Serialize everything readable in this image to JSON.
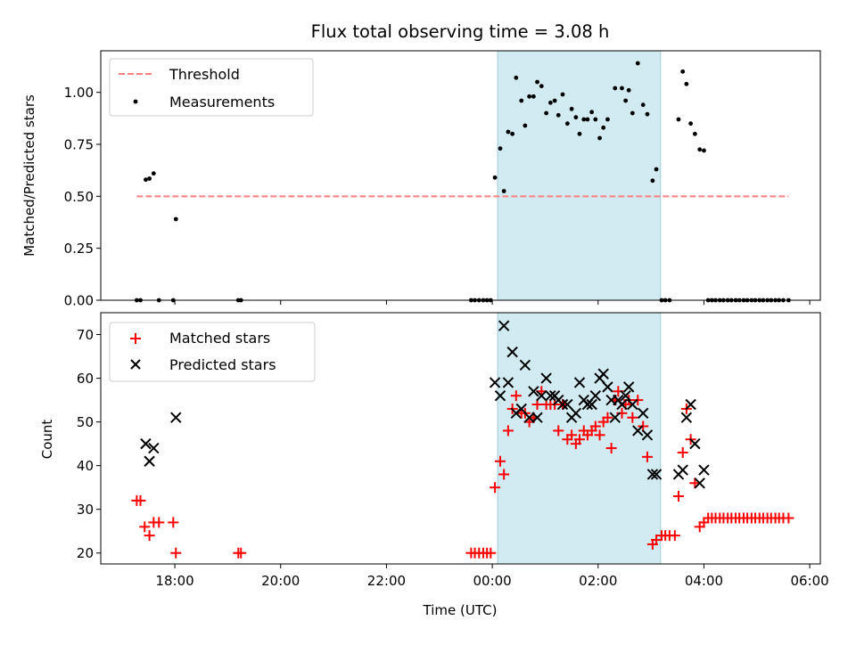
{
  "title": "Flux total observing time = 3.08 h",
  "colors": {
    "threshold": "#ff7f7f",
    "measurement": "#000000",
    "matched": "#ff0000",
    "predicted": "#000000",
    "highlight": "#add8e6"
  },
  "chart_data": [
    {
      "type": "scatter",
      "panel": "top",
      "xlabel": "",
      "ylabel": "Matched/Predicted stars",
      "ylim": [
        0,
        1.2
      ],
      "yticks": [
        0.0,
        0.25,
        0.5,
        0.75,
        1.0
      ],
      "ytick_labels": [
        "0.00",
        "0.25",
        "0.50",
        "0.75",
        "1.00"
      ],
      "xlim_hours": [
        16.6,
        30.2
      ],
      "highlight_span_hours": [
        24.1,
        27.18
      ],
      "legend": {
        "position": "top-left",
        "entries": [
          "Threshold",
          "Measurements"
        ]
      },
      "series": [
        {
          "name": "Threshold",
          "kind": "dashed-line",
          "points": [
            [
              17.28,
              0.5
            ],
            [
              29.6,
              0.5
            ]
          ]
        },
        {
          "name": "Measurements",
          "kind": "points",
          "points": [
            [
              17.28,
              0.0
            ],
            [
              17.35,
              0.0
            ],
            [
              17.45,
              0.58
            ],
            [
              17.52,
              0.585
            ],
            [
              17.6,
              0.61
            ],
            [
              17.7,
              0.0
            ],
            [
              17.97,
              0.0
            ],
            [
              18.02,
              0.39
            ],
            [
              19.2,
              0.0
            ],
            [
              19.25,
              0.0
            ],
            [
              23.6,
              0.0
            ],
            [
              23.67,
              0.0
            ],
            [
              23.75,
              0.0
            ],
            [
              23.83,
              0.0
            ],
            [
              23.9,
              0.0
            ],
            [
              23.97,
              0.0
            ],
            [
              24.05,
              0.59
            ],
            [
              24.15,
              0.73
            ],
            [
              24.22,
              0.525
            ],
            [
              24.3,
              0.81
            ],
            [
              24.38,
              0.8
            ],
            [
              24.45,
              1.07
            ],
            [
              24.55,
              0.96
            ],
            [
              24.62,
              0.84
            ],
            [
              24.7,
              0.98
            ],
            [
              24.78,
              0.98
            ],
            [
              24.85,
              1.05
            ],
            [
              24.93,
              1.03
            ],
            [
              25.02,
              0.9
            ],
            [
              25.1,
              0.95
            ],
            [
              25.18,
              0.96
            ],
            [
              25.25,
              0.89
            ],
            [
              25.33,
              0.99
            ],
            [
              25.42,
              0.85
            ],
            [
              25.5,
              0.92
            ],
            [
              25.58,
              0.88
            ],
            [
              25.65,
              0.8
            ],
            [
              25.73,
              0.87
            ],
            [
              25.8,
              0.87
            ],
            [
              25.88,
              0.905
            ],
            [
              25.95,
              0.87
            ],
            [
              26.03,
              0.78
            ],
            [
              26.1,
              0.83
            ],
            [
              26.18,
              0.87
            ],
            [
              26.32,
              1.02
            ],
            [
              26.45,
              1.02
            ],
            [
              26.52,
              0.96
            ],
            [
              26.58,
              1.01
            ],
            [
              26.65,
              0.9
            ],
            [
              26.75,
              1.14
            ],
            [
              26.85,
              0.94
            ],
            [
              26.93,
              0.895
            ],
            [
              27.03,
              0.575
            ],
            [
              27.1,
              0.63
            ],
            [
              27.2,
              0.0
            ],
            [
              27.27,
              0.0
            ],
            [
              27.35,
              0.0
            ],
            [
              27.52,
              0.87
            ],
            [
              27.6,
              1.1
            ],
            [
              27.67,
              1.04
            ],
            [
              27.75,
              0.85
            ],
            [
              27.83,
              0.8
            ],
            [
              27.92,
              0.725
            ],
            [
              28.0,
              0.72
            ],
            [
              28.08,
              0.0
            ],
            [
              28.15,
              0.0
            ],
            [
              28.22,
              0.0
            ],
            [
              28.3,
              0.0
            ],
            [
              28.37,
              0.0
            ],
            [
              28.45,
              0.0
            ],
            [
              28.52,
              0.0
            ],
            [
              28.6,
              0.0
            ],
            [
              28.67,
              0.0
            ],
            [
              28.75,
              0.0
            ],
            [
              28.82,
              0.0
            ],
            [
              28.9,
              0.0
            ],
            [
              28.97,
              0.0
            ],
            [
              29.05,
              0.0
            ],
            [
              29.12,
              0.0
            ],
            [
              29.2,
              0.0
            ],
            [
              29.27,
              0.0
            ],
            [
              29.35,
              0.0
            ],
            [
              29.42,
              0.0
            ],
            [
              29.5,
              0.0
            ],
            [
              29.6,
              0.0
            ]
          ]
        }
      ]
    },
    {
      "type": "scatter",
      "panel": "bottom",
      "xlabel": "Time (UTC)",
      "ylabel": "Count",
      "ylim": [
        17.5,
        75
      ],
      "yticks": [
        20,
        30,
        40,
        50,
        60,
        70
      ],
      "ytick_labels": [
        "20",
        "30",
        "40",
        "50",
        "60",
        "70"
      ],
      "xlim_hours": [
        16.6,
        30.2
      ],
      "xticks_hours": [
        18,
        20,
        22,
        24,
        26,
        28,
        30
      ],
      "xtick_labels": [
        "18:00",
        "20:00",
        "22:00",
        "00:00",
        "02:00",
        "04:00",
        "06:00"
      ],
      "highlight_span_hours": [
        24.1,
        27.18
      ],
      "legend": {
        "position": "top-left",
        "entries": [
          "Matched stars",
          "Predicted stars"
        ]
      },
      "series": [
        {
          "name": "Matched stars",
          "marker": "plus",
          "points": [
            [
              17.28,
              32
            ],
            [
              17.35,
              32
            ],
            [
              17.43,
              26
            ],
            [
              17.52,
              24
            ],
            [
              17.6,
              27
            ],
            [
              17.7,
              27
            ],
            [
              17.97,
              27
            ],
            [
              18.02,
              20
            ],
            [
              19.2,
              20
            ],
            [
              19.25,
              20
            ],
            [
              23.6,
              20
            ],
            [
              23.67,
              20
            ],
            [
              23.75,
              20
            ],
            [
              23.83,
              20
            ],
            [
              23.9,
              20
            ],
            [
              23.97,
              20
            ],
            [
              24.05,
              35
            ],
            [
              24.15,
              41
            ],
            [
              24.22,
              38
            ],
            [
              24.3,
              48
            ],
            [
              24.38,
              53
            ],
            [
              24.45,
              56
            ],
            [
              24.55,
              52
            ],
            [
              24.62,
              52
            ],
            [
              24.7,
              50
            ],
            [
              24.78,
              51
            ],
            [
              24.85,
              54
            ],
            [
              24.93,
              57
            ],
            [
              25.02,
              54
            ],
            [
              25.1,
              54
            ],
            [
              25.18,
              54
            ],
            [
              25.25,
              48
            ],
            [
              25.33,
              54
            ],
            [
              25.42,
              46
            ],
            [
              25.5,
              47
            ],
            [
              25.58,
              45
            ],
            [
              25.65,
              46
            ],
            [
              25.73,
              48
            ],
            [
              25.8,
              47
            ],
            [
              25.88,
              48
            ],
            [
              25.95,
              49
            ],
            [
              26.03,
              47
            ],
            [
              26.1,
              50
            ],
            [
              26.18,
              51
            ],
            [
              26.25,
              44
            ],
            [
              26.32,
              55
            ],
            [
              26.38,
              57
            ],
            [
              26.45,
              52
            ],
            [
              26.52,
              54
            ],
            [
              26.58,
              55
            ],
            [
              26.65,
              51
            ],
            [
              26.75,
              55
            ],
            [
              26.85,
              49
            ],
            [
              26.93,
              42
            ],
            [
              27.03,
              22
            ],
            [
              27.1,
              23
            ],
            [
              27.2,
              24
            ],
            [
              27.27,
              24
            ],
            [
              27.35,
              24
            ],
            [
              27.45,
              24
            ],
            [
              27.52,
              33
            ],
            [
              27.6,
              43
            ],
            [
              27.67,
              53
            ],
            [
              27.75,
              46
            ],
            [
              27.83,
              36
            ],
            [
              27.92,
              26
            ],
            [
              28.0,
              27
            ],
            [
              28.08,
              28
            ],
            [
              28.15,
              28
            ],
            [
              28.22,
              28
            ],
            [
              28.3,
              28
            ],
            [
              28.37,
              28
            ],
            [
              28.45,
              28
            ],
            [
              28.52,
              28
            ],
            [
              28.6,
              28
            ],
            [
              28.67,
              28
            ],
            [
              28.75,
              28
            ],
            [
              28.82,
              28
            ],
            [
              28.9,
              28
            ],
            [
              28.97,
              28
            ],
            [
              29.05,
              28
            ],
            [
              29.12,
              28
            ],
            [
              29.2,
              28
            ],
            [
              29.27,
              28
            ],
            [
              29.35,
              28
            ],
            [
              29.42,
              28
            ],
            [
              29.5,
              28
            ],
            [
              29.6,
              28
            ]
          ]
        },
        {
          "name": "Predicted stars",
          "marker": "x",
          "points": [
            [
              17.45,
              45
            ],
            [
              17.52,
              41
            ],
            [
              17.6,
              44
            ],
            [
              18.02,
              51
            ],
            [
              24.05,
              59
            ],
            [
              24.15,
              56
            ],
            [
              24.22,
              72
            ],
            [
              24.3,
              59
            ],
            [
              24.38,
              66
            ],
            [
              24.45,
              52
            ],
            [
              24.55,
              53
            ],
            [
              24.62,
              63
            ],
            [
              24.7,
              51
            ],
            [
              24.78,
              57
            ],
            [
              24.85,
              51
            ],
            [
              24.93,
              56
            ],
            [
              25.02,
              60
            ],
            [
              25.1,
              56
            ],
            [
              25.18,
              56
            ],
            [
              25.25,
              55
            ],
            [
              25.33,
              54
            ],
            [
              25.42,
              54
            ],
            [
              25.5,
              51
            ],
            [
              25.58,
              52
            ],
            [
              25.65,
              59
            ],
            [
              25.73,
              55
            ],
            [
              25.8,
              54
            ],
            [
              25.88,
              54
            ],
            [
              25.95,
              56
            ],
            [
              26.03,
              60
            ],
            [
              26.1,
              61
            ],
            [
              26.18,
              58
            ],
            [
              26.25,
              55
            ],
            [
              26.32,
              51
            ],
            [
              26.38,
              55
            ],
            [
              26.45,
              54
            ],
            [
              26.52,
              56
            ],
            [
              26.58,
              58
            ],
            [
              26.65,
              54
            ],
            [
              26.75,
              48
            ],
            [
              26.85,
              52
            ],
            [
              26.93,
              47
            ],
            [
              27.03,
              38
            ],
            [
              27.1,
              38
            ],
            [
              27.52,
              38
            ],
            [
              27.6,
              39
            ],
            [
              27.67,
              51
            ],
            [
              27.75,
              54
            ],
            [
              27.83,
              45
            ],
            [
              27.92,
              36
            ],
            [
              28.0,
              39
            ]
          ]
        }
      ]
    }
  ]
}
